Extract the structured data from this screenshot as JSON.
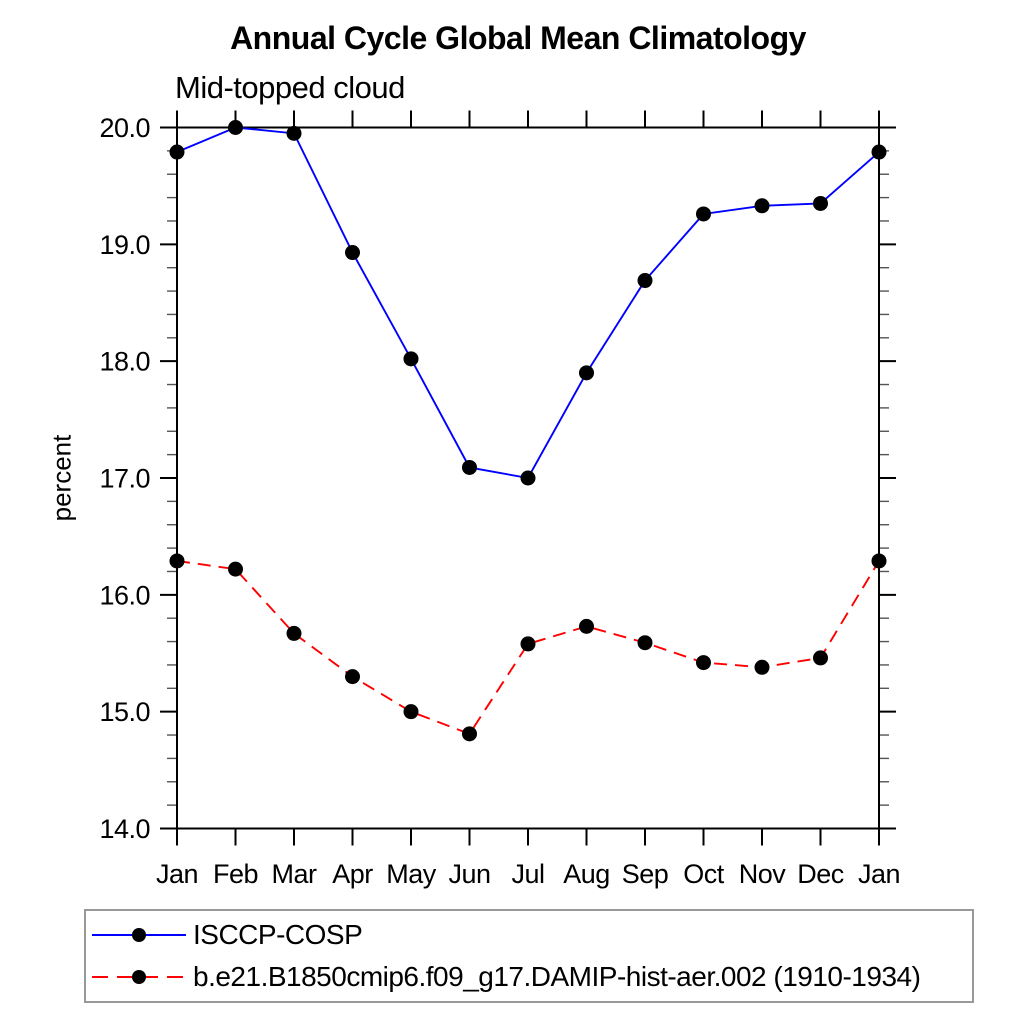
{
  "chart_data": {
    "type": "line",
    "title": "Annual Cycle Global Mean Climatology",
    "subtitle": "Mid-topped cloud",
    "xlabel": "",
    "ylabel": "percent",
    "categories": [
      "Jan",
      "Feb",
      "Mar",
      "Apr",
      "May",
      "Jun",
      "Jul",
      "Aug",
      "Sep",
      "Oct",
      "Nov",
      "Dec",
      "Jan"
    ],
    "ylim": [
      14.0,
      20.0
    ],
    "y_major_step": 1.0,
    "y_minor_step": 0.2,
    "y_tick_labels": [
      "14.0",
      "15.0",
      "16.0",
      "17.0",
      "18.0",
      "19.0",
      "20.0"
    ],
    "grid": false,
    "legend_position": "bottom-left-box",
    "marker": "filled-circle",
    "marker_color": "#000000",
    "series": [
      {
        "name": "ISCCP-COSP",
        "color": "#0000ff",
        "line_style": "solid",
        "values": [
          19.79,
          20.0,
          19.95,
          18.93,
          18.02,
          17.09,
          17.0,
          17.9,
          18.69,
          19.26,
          19.33,
          19.35,
          19.79
        ]
      },
      {
        "name": "b.e21.B1850cmip6.f09_g17.DAMIP-hist-aer.002 (1910-1934)",
        "color": "#ff0000",
        "line_style": "dashed",
        "values": [
          16.29,
          16.22,
          15.67,
          15.3,
          15.0,
          14.81,
          15.58,
          15.73,
          15.59,
          15.42,
          15.38,
          15.46,
          16.29
        ]
      }
    ]
  }
}
